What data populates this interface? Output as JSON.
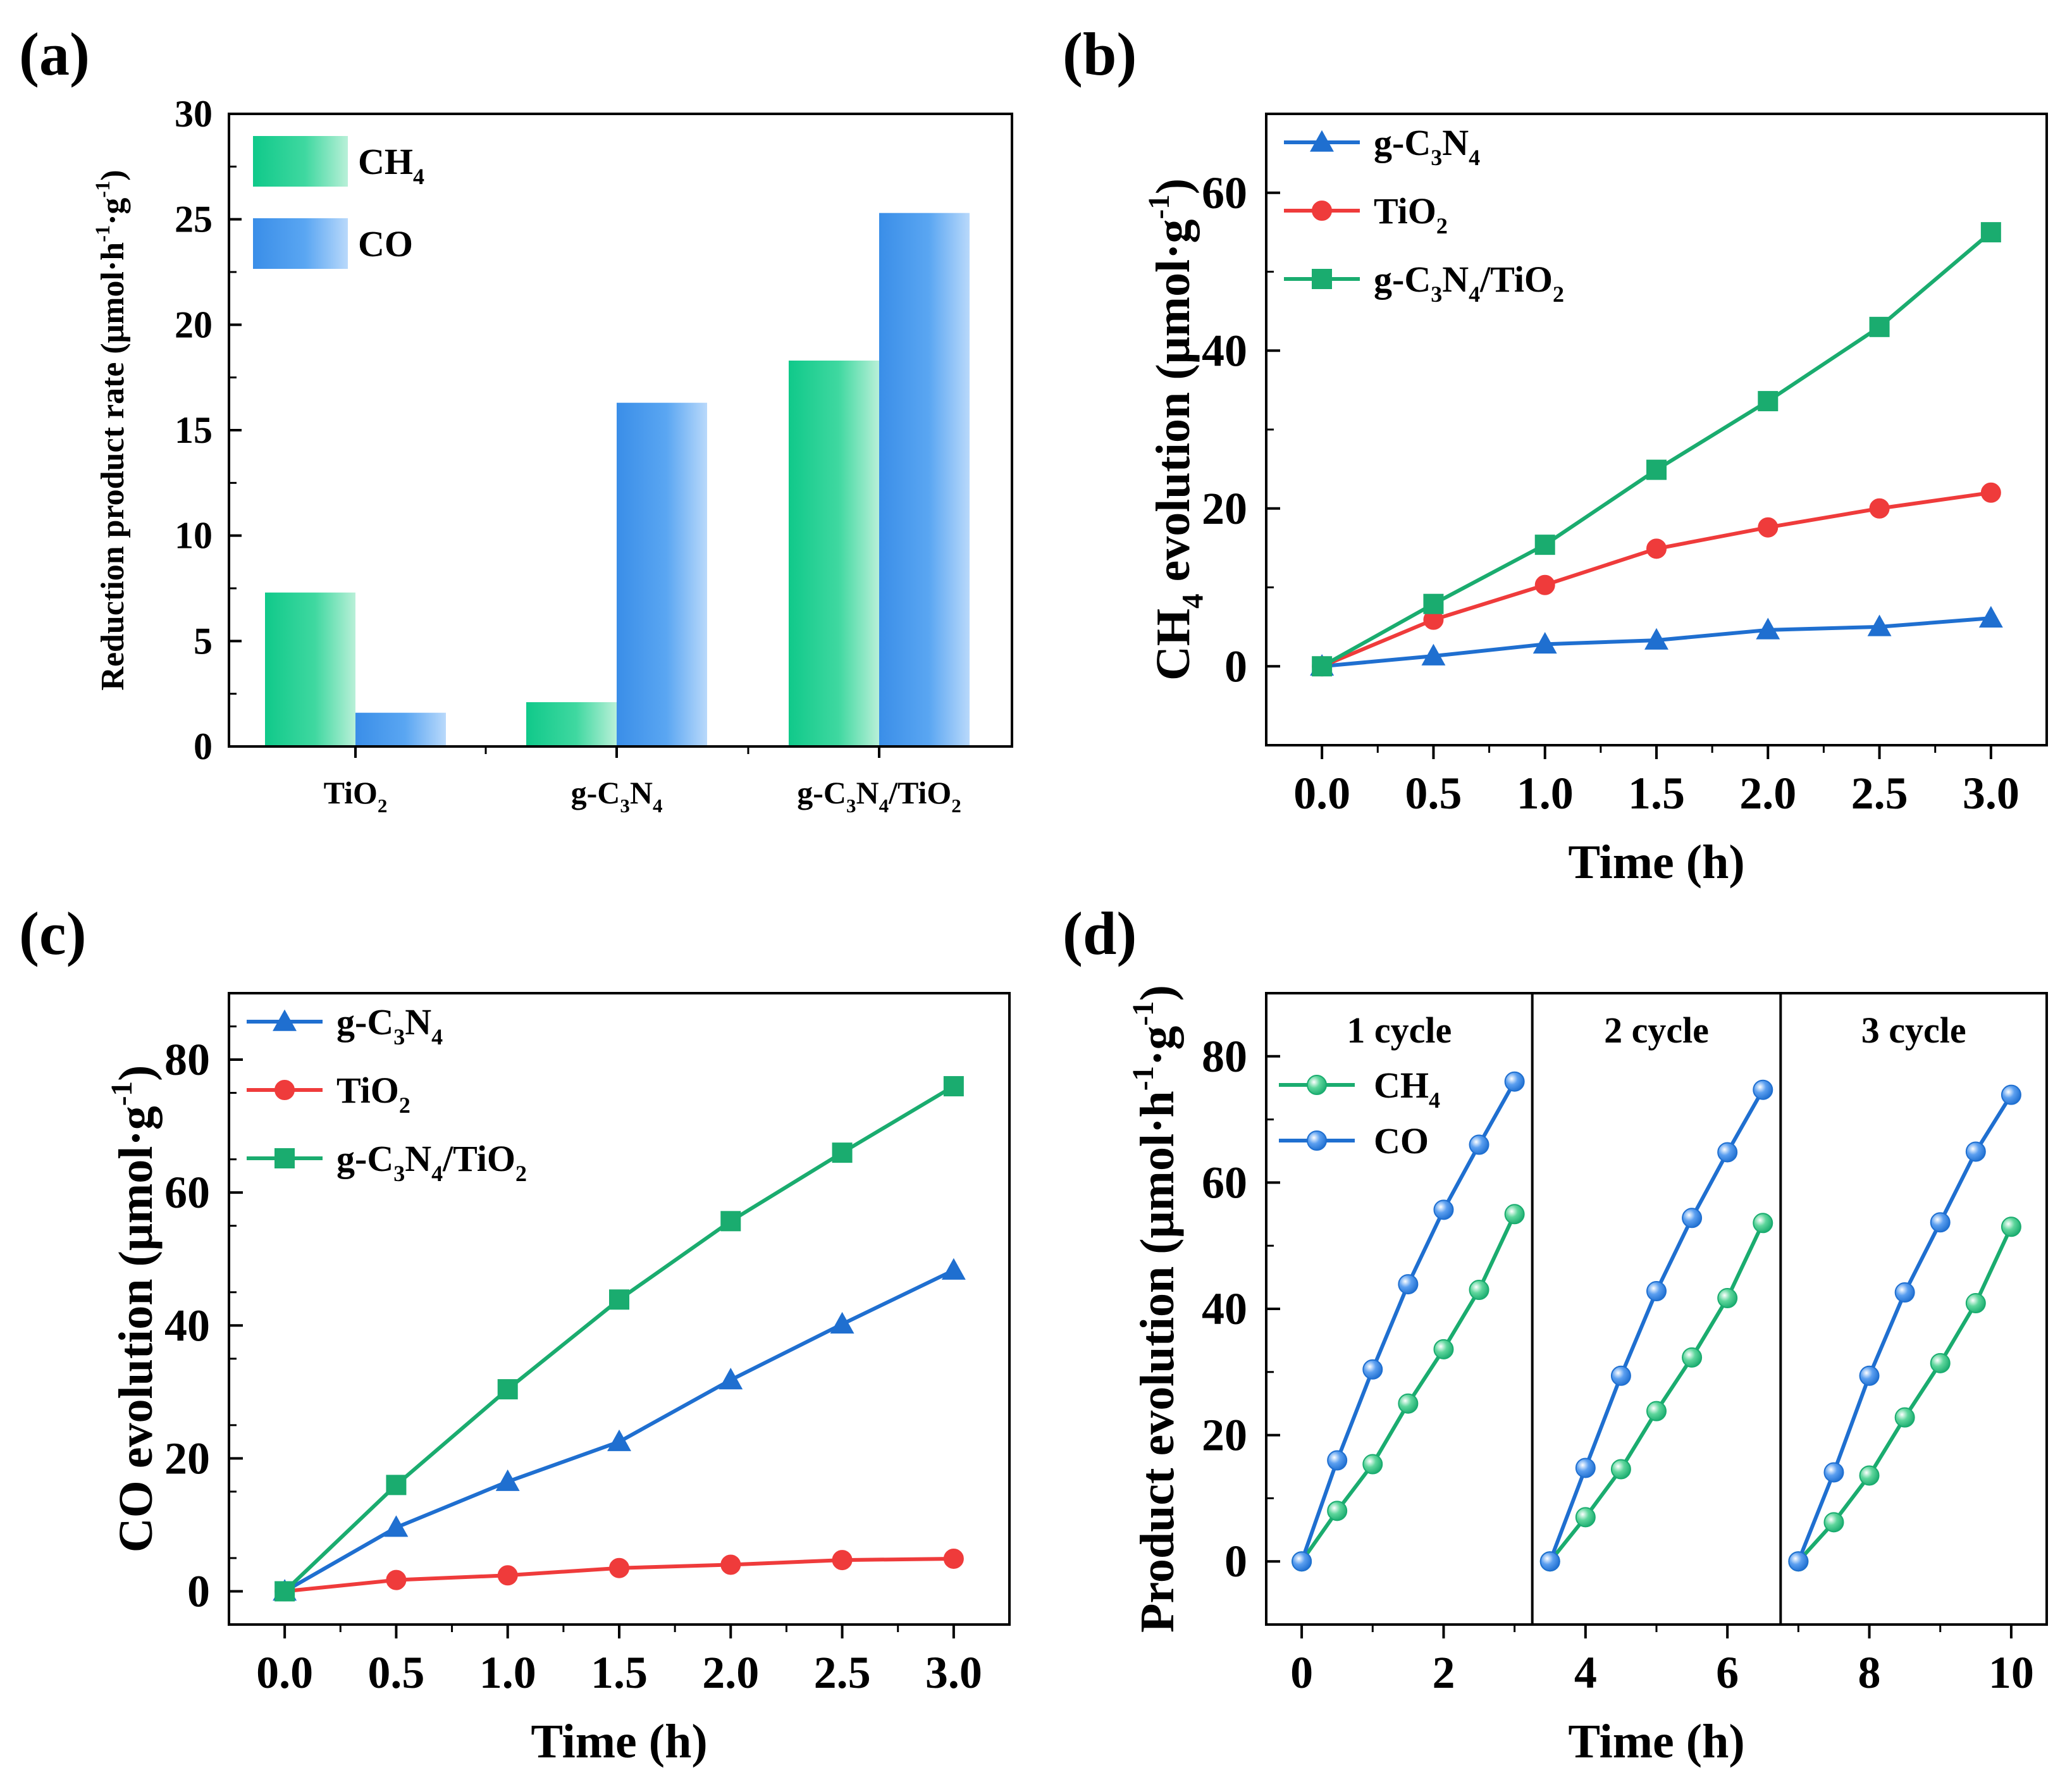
{
  "figure": {
    "panel_labels": [
      "(a)",
      "(b)",
      "(c)",
      "(d)"
    ],
    "colors": {
      "green": "#1aac6f",
      "blue": "#1f6fd0",
      "red": "#ef3b3b",
      "bar_green_dark": "#10c98a",
      "bar_green_light": "#b9f0d8",
      "bar_blue_dark": "#3a8ee8",
      "bar_blue_light": "#b9d9fb"
    }
  },
  "chart_data": [
    {
      "type": "bar",
      "panel": "(a)",
      "ylabel": "Reduction product rate (μmol·h⁻¹·g⁻¹)",
      "ylim": [
        0,
        30
      ],
      "yticks": [
        "0",
        "5",
        "10",
        "15",
        "20",
        "25",
        "30"
      ],
      "categories": [
        "TiO₂",
        "g-C₃N₄",
        "g-C₃N₄/TiO₂"
      ],
      "series": [
        {
          "name": "CH₄",
          "values": [
            7.3,
            2.1,
            18.3
          ]
        },
        {
          "name": "CO",
          "values": [
            1.6,
            16.3,
            25.3
          ]
        }
      ],
      "legend_position": "top-left"
    },
    {
      "type": "line",
      "panel": "(b)",
      "xlabel": "Time (h)",
      "ylabel": "CH₄ evolution  (μmol·g⁻¹)",
      "xlim": [
        -0.25,
        3.25
      ],
      "ylim": [
        -10,
        70
      ],
      "xticks": [
        "0.0",
        "0.5",
        "1.0",
        "1.5",
        "2.0",
        "2.5",
        "3.0"
      ],
      "yticks": [
        "0",
        "20",
        "40",
        "60"
      ],
      "x": [
        0,
        0.5,
        1.0,
        1.5,
        2.0,
        2.5,
        3.0
      ],
      "series": [
        {
          "name": "g-C₃N₄",
          "marker": "triangle",
          "values": [
            0,
            1.3,
            2.8,
            3.3,
            4.6,
            5.0,
            6.1
          ]
        },
        {
          "name": "TiO₂",
          "marker": "circle",
          "values": [
            0,
            5.9,
            10.3,
            14.9,
            17.6,
            20.0,
            22.0
          ]
        },
        {
          "name": "g-C₃N₄/TiO₂",
          "marker": "square",
          "values": [
            0,
            7.9,
            15.4,
            24.9,
            33.6,
            43.0,
            55.0
          ]
        }
      ],
      "legend_position": "top-left"
    },
    {
      "type": "line",
      "panel": "(c)",
      "xlabel": "Time (h)",
      "ylabel": "CO evolution (μmol·g⁻¹)",
      "xlim": [
        -0.25,
        3.25
      ],
      "ylim": [
        -5,
        90
      ],
      "xticks": [
        "0.0",
        "0.5",
        "1.0",
        "1.5",
        "2.0",
        "2.5",
        "3.0"
      ],
      "yticks": [
        "0",
        "20",
        "40",
        "60",
        "80"
      ],
      "x": [
        0,
        0.5,
        1.0,
        1.5,
        2.0,
        2.5,
        3.0
      ],
      "series": [
        {
          "name": "g-C₃N₄",
          "marker": "triangle",
          "values": [
            0,
            9.6,
            16.5,
            22.5,
            31.8,
            40.2,
            48.3
          ]
        },
        {
          "name": "TiO₂",
          "marker": "circle",
          "values": [
            0,
            1.7,
            2.4,
            3.5,
            4.0,
            4.7,
            4.9
          ]
        },
        {
          "name": "g-C₃N₄/TiO₂",
          "marker": "square",
          "values": [
            0,
            16.0,
            30.4,
            43.9,
            55.7,
            66.0,
            76.0
          ]
        }
      ],
      "legend_position": "top-left"
    },
    {
      "type": "line",
      "panel": "(d)",
      "xlabel": "Time (h)",
      "ylabel": "Product evolution (μmol·h⁻¹·g⁻¹)",
      "xlim": [
        -0.5,
        10.5
      ],
      "ylim": [
        -10,
        90
      ],
      "xticks": [
        "0",
        "2",
        "4",
        "6",
        "8",
        "10"
      ],
      "yticks": [
        "0",
        "20",
        "40",
        "60",
        "80"
      ],
      "cycle_labels": [
        "1 cycle",
        "2 cycle",
        "3 cycle"
      ],
      "cycle_dividers_x": [
        3.25,
        6.75
      ],
      "series": [
        {
          "name": "CH₄",
          "marker": "circle",
          "segments": [
            {
              "x": [
                0,
                0.5,
                1.0,
                1.5,
                2.0,
                2.5,
                3.0
              ],
              "values": [
                0,
                8.0,
                15.4,
                25.0,
                33.6,
                43.0,
                55.0
              ]
            },
            {
              "x": [
                3.5,
                4.0,
                4.5,
                5.0,
                5.5,
                6.0,
                6.5
              ],
              "values": [
                0,
                7.0,
                14.6,
                23.8,
                32.3,
                41.7,
                53.6
              ]
            },
            {
              "x": [
                7.0,
                7.5,
                8.0,
                8.5,
                9.0,
                9.5,
                10.0
              ],
              "values": [
                0,
                6.2,
                13.6,
                22.8,
                31.4,
                40.9,
                53.0
              ]
            }
          ]
        },
        {
          "name": "CO",
          "marker": "circle",
          "segments": [
            {
              "x": [
                0,
                0.5,
                1.0,
                1.5,
                2.0,
                2.5,
                3.0
              ],
              "values": [
                0,
                16.0,
                30.4,
                43.9,
                55.7,
                66.0,
                76.0
              ]
            },
            {
              "x": [
                3.5,
                4.0,
                4.5,
                5.0,
                5.5,
                6.0,
                6.5
              ],
              "values": [
                0,
                14.8,
                29.4,
                42.8,
                54.4,
                64.8,
                74.7
              ]
            },
            {
              "x": [
                7.0,
                7.5,
                8.0,
                8.5,
                9.0,
                9.5,
                10.0
              ],
              "values": [
                0,
                14.1,
                29.4,
                42.6,
                53.7,
                64.9,
                73.9
              ]
            }
          ]
        }
      ],
      "legend_position": "top-left"
    }
  ]
}
